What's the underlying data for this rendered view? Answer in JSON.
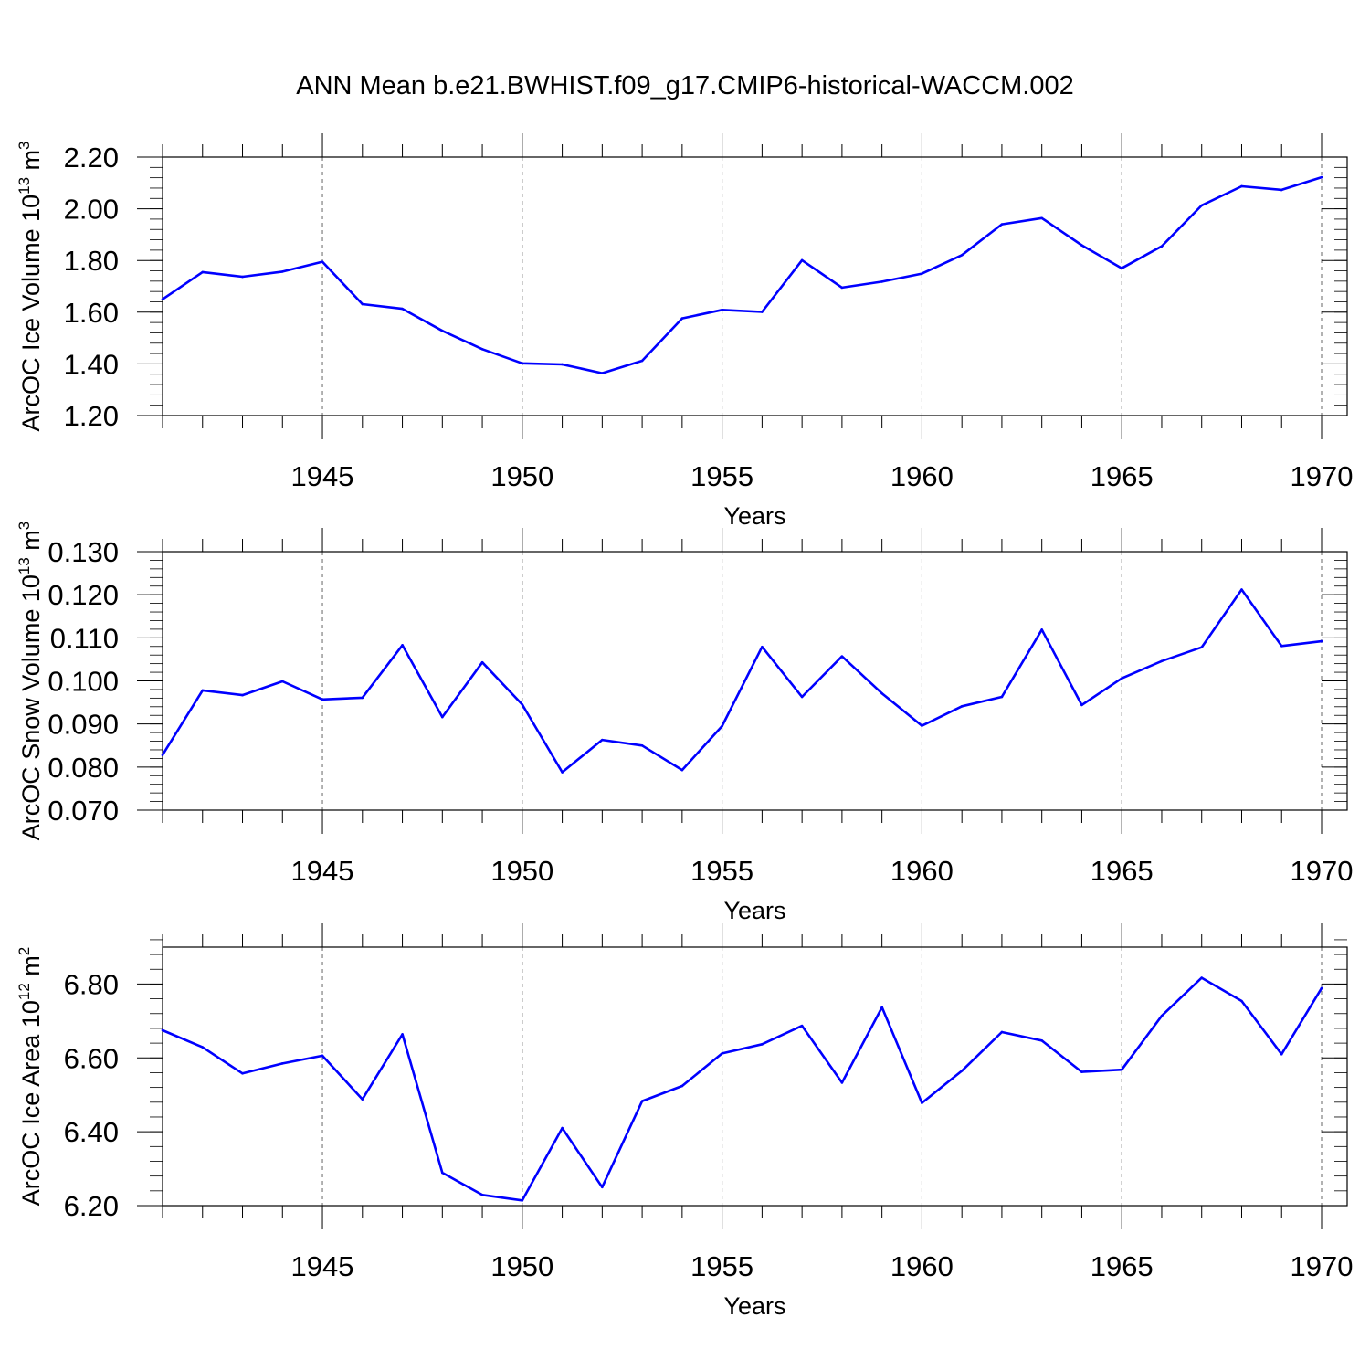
{
  "title": "ANN Mean b.e21.BWHIST.f09_g17.CMIP6-historical-WACCM.002",
  "style": {
    "line_color": "#0000ff",
    "axis_color": "#000000",
    "grid_color": "#666666"
  },
  "chart_data": [
    {
      "type": "line",
      "title": "",
      "ylabel_main": "ArcOC Ice Volume 10",
      "ylabel_exp": "13",
      "ylabel_unit": " m",
      "ylabel_unit_exp": "3",
      "xlabel": "Years",
      "xlim": [
        1941,
        1970
      ],
      "ylim": [
        1.2,
        2.2
      ],
      "yticks": [
        "1.20",
        "1.40",
        "1.60",
        "1.80",
        "2.00",
        "2.20"
      ],
      "xticks": [
        "1945",
        "1950",
        "1955",
        "1960",
        "1965",
        "1970"
      ],
      "x": [
        1941,
        1942,
        1943,
        1944,
        1945,
        1946,
        1947,
        1948,
        1949,
        1950,
        1951,
        1952,
        1953,
        1954,
        1955,
        1956,
        1957,
        1958,
        1959,
        1960,
        1961,
        1962,
        1963,
        1964,
        1965,
        1966,
        1967,
        1968,
        1969,
        1970
      ],
      "values": [
        1.65,
        1.755,
        1.737,
        1.757,
        1.795,
        1.631,
        1.613,
        1.528,
        1.457,
        1.402,
        1.398,
        1.364,
        1.412,
        1.576,
        1.609,
        1.601,
        1.801,
        1.695,
        1.718,
        1.749,
        1.821,
        1.94,
        1.964,
        1.859,
        1.77,
        1.855,
        2.013,
        2.087,
        2.073,
        2.122
      ]
    },
    {
      "type": "line",
      "title": "",
      "ylabel_main": "ArcOC Snow Volume 10",
      "ylabel_exp": "13",
      "ylabel_unit": " m",
      "ylabel_unit_exp": "3",
      "xlabel": "Years",
      "xlim": [
        1941,
        1970
      ],
      "ylim": [
        0.07,
        0.13
      ],
      "yticks": [
        "0.070",
        "0.080",
        "0.090",
        "0.100",
        "0.110",
        "0.120",
        "0.130"
      ],
      "xticks": [
        "1945",
        "1950",
        "1955",
        "1960",
        "1965",
        "1970"
      ],
      "x": [
        1941,
        1942,
        1943,
        1944,
        1945,
        1946,
        1947,
        1948,
        1949,
        1950,
        1951,
        1952,
        1953,
        1954,
        1955,
        1956,
        1957,
        1958,
        1959,
        1960,
        1961,
        1962,
        1963,
        1964,
        1965,
        1966,
        1967,
        1968,
        1969,
        1970
      ],
      "values": [
        0.0828,
        0.0978,
        0.0967,
        0.0999,
        0.0957,
        0.0961,
        0.1083,
        0.0916,
        0.1043,
        0.0945,
        0.0788,
        0.0863,
        0.085,
        0.0793,
        0.0895,
        0.1079,
        0.0963,
        0.1057,
        0.0971,
        0.0896,
        0.0941,
        0.0963,
        0.1119,
        0.0944,
        0.1006,
        0.1046,
        0.1078,
        0.1212,
        0.1081,
        0.1092
      ]
    },
    {
      "type": "line",
      "title": "",
      "ylabel_main": "ArcOC Ice Area 10",
      "ylabel_exp": "12",
      "ylabel_unit": " m",
      "ylabel_unit_exp": "2",
      "xlabel": "Years",
      "xlim": [
        1941,
        1970
      ],
      "ylim": [
        6.2,
        6.9
      ],
      "yticks": [
        "6.20",
        "6.40",
        "6.60",
        "6.80"
      ],
      "xticks": [
        "1945",
        "1950",
        "1955",
        "1960",
        "1965",
        "1970"
      ],
      "x": [
        1941,
        1942,
        1943,
        1944,
        1945,
        1946,
        1947,
        1948,
        1949,
        1950,
        1951,
        1952,
        1953,
        1954,
        1955,
        1956,
        1957,
        1958,
        1959,
        1960,
        1961,
        1962,
        1963,
        1964,
        1965,
        1966,
        1967,
        1968,
        1969,
        1970
      ],
      "values": [
        6.675,
        6.629,
        6.558,
        6.585,
        6.606,
        6.488,
        6.664,
        6.289,
        6.229,
        6.214,
        6.41,
        6.25,
        6.483,
        6.524,
        6.612,
        6.637,
        6.687,
        6.533,
        6.737,
        6.478,
        6.565,
        6.67,
        6.647,
        6.562,
        6.568,
        6.714,
        6.817,
        6.754,
        6.61,
        6.789
      ]
    }
  ]
}
